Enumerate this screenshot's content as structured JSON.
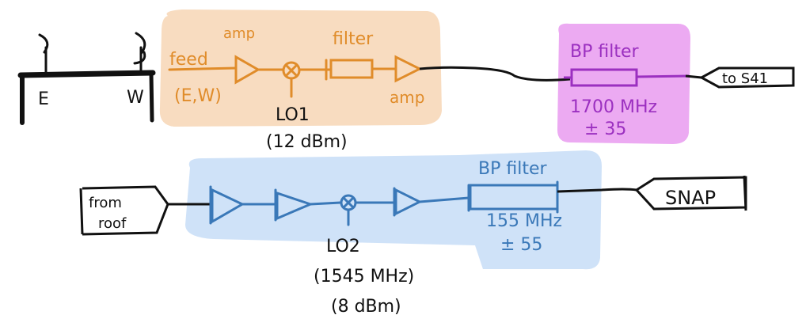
{
  "colors": {
    "ink": "#111111",
    "orange_box": "#f8dcc0",
    "orange_ink": "#e08c2a",
    "purple_box": "#ecaaf2",
    "purple_ink": "#9b30c0",
    "blue_box": "#cfe2f8",
    "blue_ink": "#3a78b8"
  },
  "antenna": {
    "east_label": "E",
    "west_label": "W"
  },
  "stage1": {
    "amp1_label": "amp",
    "feed_label": "feed",
    "feed_sub_label": "(E,W)",
    "filter_label": "filter",
    "amp2_label": "amp",
    "lo_label": "LO1",
    "lo_power": "(12 dBm)"
  },
  "bp_filter_1": {
    "label": "BP filter",
    "freq": "1700 MHz",
    "bandwidth": "± 35"
  },
  "output_1": {
    "label": "to S41"
  },
  "stage2": {
    "input_label_line1": "from",
    "input_label_line2": "roof",
    "lo_label": "LO2",
    "lo_freq": "(1545 MHz)",
    "lo_power": "(8 dBm)",
    "filter_label": "BP filter",
    "filter_freq": "155 MHz",
    "filter_bandwidth": "± 55"
  },
  "output_2": {
    "label": "SNAP"
  }
}
